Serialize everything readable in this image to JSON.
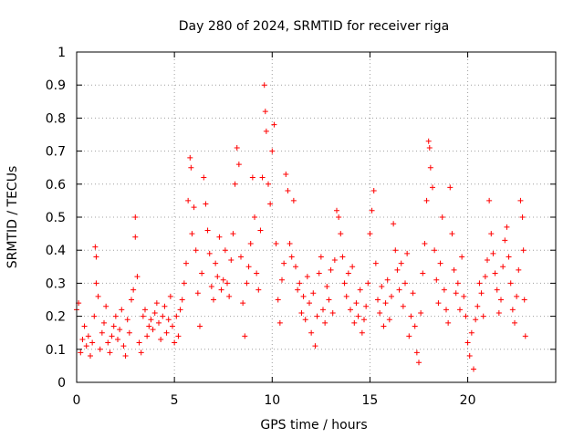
{
  "chart_data": {
    "type": "scatter",
    "title": "Day 280 of 2024, SRMTID for receiver riga",
    "xlabel": "GPS time / hours",
    "ylabel": "SRMTID / TECUs",
    "xlim": [
      0,
      24.5
    ],
    "ylim": [
      0,
      1
    ],
    "x_ticks": [
      0,
      5,
      10,
      15,
      20
    ],
    "x_tick_labels": [
      "0",
      "5",
      "10",
      "15",
      "20"
    ],
    "y_ticks": [
      0,
      0.1,
      0.2,
      0.3,
      0.4,
      0.5,
      0.6,
      0.7,
      0.8,
      0.9,
      1
    ],
    "y_tick_labels": [
      "0",
      "0.1",
      "0.2",
      "0.3",
      "0.4",
      "0.5",
      "0.6",
      "0.7",
      "0.8",
      "0.9",
      "1"
    ],
    "grid": true,
    "marker": "+",
    "color": "#ff0000",
    "series": [
      {
        "name": "SRMTID",
        "points": [
          [
            0.0,
            0.22
          ],
          [
            0.1,
            0.24
          ],
          [
            0.2,
            0.09
          ],
          [
            0.3,
            0.13
          ],
          [
            0.4,
            0.17
          ],
          [
            0.5,
            0.11
          ],
          [
            0.6,
            0.14
          ],
          [
            0.7,
            0.08
          ],
          [
            0.8,
            0.12
          ],
          [
            0.9,
            0.2
          ],
          [
            0.95,
            0.41
          ],
          [
            1.0,
            0.38
          ],
          [
            1.0,
            0.3
          ],
          [
            1.1,
            0.26
          ],
          [
            1.2,
            0.1
          ],
          [
            1.3,
            0.15
          ],
          [
            1.4,
            0.18
          ],
          [
            1.5,
            0.23
          ],
          [
            1.6,
            0.12
          ],
          [
            1.7,
            0.09
          ],
          [
            1.8,
            0.14
          ],
          [
            1.9,
            0.17
          ],
          [
            2.0,
            0.2
          ],
          [
            2.1,
            0.13
          ],
          [
            2.2,
            0.16
          ],
          [
            2.3,
            0.22
          ],
          [
            2.4,
            0.11
          ],
          [
            2.5,
            0.08
          ],
          [
            2.6,
            0.19
          ],
          [
            2.7,
            0.15
          ],
          [
            2.8,
            0.25
          ],
          [
            2.9,
            0.28
          ],
          [
            3.0,
            0.5
          ],
          [
            3.0,
            0.44
          ],
          [
            3.1,
            0.32
          ],
          [
            3.2,
            0.12
          ],
          [
            3.3,
            0.09
          ],
          [
            3.4,
            0.2
          ],
          [
            3.5,
            0.22
          ],
          [
            3.6,
            0.14
          ],
          [
            3.7,
            0.17
          ],
          [
            3.8,
            0.19
          ],
          [
            3.9,
            0.16
          ],
          [
            4.0,
            0.21
          ],
          [
            4.1,
            0.24
          ],
          [
            4.2,
            0.18
          ],
          [
            4.3,
            0.13
          ],
          [
            4.4,
            0.2
          ],
          [
            4.5,
            0.23
          ],
          [
            4.6,
            0.15
          ],
          [
            4.7,
            0.19
          ],
          [
            4.8,
            0.26
          ],
          [
            4.9,
            0.17
          ],
          [
            5.0,
            0.12
          ],
          [
            5.1,
            0.2
          ],
          [
            5.2,
            0.14
          ],
          [
            5.3,
            0.22
          ],
          [
            5.4,
            0.25
          ],
          [
            5.5,
            0.3
          ],
          [
            5.6,
            0.36
          ],
          [
            5.7,
            0.55
          ],
          [
            5.8,
            0.68
          ],
          [
            5.85,
            0.65
          ],
          [
            5.9,
            0.45
          ],
          [
            6.0,
            0.53
          ],
          [
            6.1,
            0.4
          ],
          [
            6.2,
            0.27
          ],
          [
            6.3,
            0.17
          ],
          [
            6.4,
            0.33
          ],
          [
            6.5,
            0.62
          ],
          [
            6.6,
            0.54
          ],
          [
            6.7,
            0.46
          ],
          [
            6.8,
            0.39
          ],
          [
            6.9,
            0.29
          ],
          [
            7.0,
            0.25
          ],
          [
            7.1,
            0.36
          ],
          [
            7.2,
            0.32
          ],
          [
            7.3,
            0.44
          ],
          [
            7.4,
            0.28
          ],
          [
            7.5,
            0.31
          ],
          [
            7.6,
            0.4
          ],
          [
            7.7,
            0.3
          ],
          [
            7.8,
            0.26
          ],
          [
            7.9,
            0.37
          ],
          [
            8.0,
            0.45
          ],
          [
            8.1,
            0.6
          ],
          [
            8.2,
            0.71
          ],
          [
            8.3,
            0.66
          ],
          [
            8.4,
            0.38
          ],
          [
            8.5,
            0.24
          ],
          [
            8.6,
            0.14
          ],
          [
            8.7,
            0.3
          ],
          [
            8.8,
            0.35
          ],
          [
            8.9,
            0.42
          ],
          [
            9.0,
            0.62
          ],
          [
            9.1,
            0.5
          ],
          [
            9.2,
            0.33
          ],
          [
            9.3,
            0.28
          ],
          [
            9.4,
            0.46
          ],
          [
            9.5,
            0.62
          ],
          [
            9.6,
            0.9
          ],
          [
            9.65,
            0.82
          ],
          [
            9.7,
            0.76
          ],
          [
            9.8,
            0.6
          ],
          [
            9.9,
            0.54
          ],
          [
            10.0,
            0.7
          ],
          [
            10.1,
            0.78
          ],
          [
            10.2,
            0.42
          ],
          [
            10.3,
            0.25
          ],
          [
            10.4,
            0.18
          ],
          [
            10.5,
            0.31
          ],
          [
            10.6,
            0.36
          ],
          [
            10.7,
            0.63
          ],
          [
            10.8,
            0.58
          ],
          [
            10.9,
            0.42
          ],
          [
            11.0,
            0.38
          ],
          [
            11.1,
            0.55
          ],
          [
            11.2,
            0.35
          ],
          [
            11.3,
            0.28
          ],
          [
            11.4,
            0.3
          ],
          [
            11.5,
            0.21
          ],
          [
            11.6,
            0.26
          ],
          [
            11.7,
            0.19
          ],
          [
            11.8,
            0.32
          ],
          [
            11.9,
            0.24
          ],
          [
            12.0,
            0.15
          ],
          [
            12.1,
            0.27
          ],
          [
            12.2,
            0.11
          ],
          [
            12.3,
            0.2
          ],
          [
            12.4,
            0.33
          ],
          [
            12.5,
            0.38
          ],
          [
            12.6,
            0.22
          ],
          [
            12.7,
            0.18
          ],
          [
            12.8,
            0.29
          ],
          [
            12.9,
            0.25
          ],
          [
            13.0,
            0.34
          ],
          [
            13.1,
            0.21
          ],
          [
            13.2,
            0.37
          ],
          [
            13.3,
            0.52
          ],
          [
            13.4,
            0.5
          ],
          [
            13.5,
            0.45
          ],
          [
            13.6,
            0.38
          ],
          [
            13.7,
            0.3
          ],
          [
            13.8,
            0.26
          ],
          [
            13.9,
            0.33
          ],
          [
            14.0,
            0.22
          ],
          [
            14.1,
            0.35
          ],
          [
            14.2,
            0.18
          ],
          [
            14.3,
            0.24
          ],
          [
            14.4,
            0.2
          ],
          [
            14.5,
            0.28
          ],
          [
            14.6,
            0.15
          ],
          [
            14.7,
            0.19
          ],
          [
            14.8,
            0.23
          ],
          [
            14.9,
            0.3
          ],
          [
            15.0,
            0.45
          ],
          [
            15.1,
            0.52
          ],
          [
            15.2,
            0.58
          ],
          [
            15.3,
            0.36
          ],
          [
            15.4,
            0.25
          ],
          [
            15.5,
            0.21
          ],
          [
            15.6,
            0.29
          ],
          [
            15.7,
            0.17
          ],
          [
            15.8,
            0.24
          ],
          [
            15.9,
            0.31
          ],
          [
            16.0,
            0.19
          ],
          [
            16.1,
            0.26
          ],
          [
            16.2,
            0.48
          ],
          [
            16.3,
            0.4
          ],
          [
            16.4,
            0.34
          ],
          [
            16.5,
            0.28
          ],
          [
            16.6,
            0.36
          ],
          [
            16.7,
            0.23
          ],
          [
            16.8,
            0.3
          ],
          [
            16.9,
            0.39
          ],
          [
            17.0,
            0.14
          ],
          [
            17.1,
            0.2
          ],
          [
            17.2,
            0.27
          ],
          [
            17.3,
            0.17
          ],
          [
            17.4,
            0.09
          ],
          [
            17.5,
            0.06
          ],
          [
            17.6,
            0.21
          ],
          [
            17.7,
            0.33
          ],
          [
            17.8,
            0.42
          ],
          [
            17.9,
            0.55
          ],
          [
            18.0,
            0.73
          ],
          [
            18.05,
            0.71
          ],
          [
            18.1,
            0.65
          ],
          [
            18.2,
            0.59
          ],
          [
            18.3,
            0.4
          ],
          [
            18.4,
            0.31
          ],
          [
            18.5,
            0.24
          ],
          [
            18.6,
            0.36
          ],
          [
            18.7,
            0.5
          ],
          [
            18.8,
            0.28
          ],
          [
            18.9,
            0.22
          ],
          [
            19.0,
            0.18
          ],
          [
            19.1,
            0.59
          ],
          [
            19.2,
            0.45
          ],
          [
            19.3,
            0.34
          ],
          [
            19.4,
            0.27
          ],
          [
            19.5,
            0.3
          ],
          [
            19.6,
            0.22
          ],
          [
            19.7,
            0.38
          ],
          [
            19.8,
            0.26
          ],
          [
            19.9,
            0.2
          ],
          [
            20.0,
            0.12
          ],
          [
            20.1,
            0.08
          ],
          [
            20.2,
            0.15
          ],
          [
            20.3,
            0.04
          ],
          [
            20.4,
            0.19
          ],
          [
            20.5,
            0.23
          ],
          [
            20.6,
            0.3
          ],
          [
            20.7,
            0.27
          ],
          [
            20.8,
            0.2
          ],
          [
            20.9,
            0.32
          ],
          [
            21.0,
            0.37
          ],
          [
            21.1,
            0.55
          ],
          [
            21.2,
            0.45
          ],
          [
            21.3,
            0.39
          ],
          [
            21.4,
            0.33
          ],
          [
            21.5,
            0.28
          ],
          [
            21.6,
            0.21
          ],
          [
            21.7,
            0.25
          ],
          [
            21.8,
            0.35
          ],
          [
            21.9,
            0.43
          ],
          [
            22.0,
            0.47
          ],
          [
            22.1,
            0.38
          ],
          [
            22.2,
            0.3
          ],
          [
            22.3,
            0.22
          ],
          [
            22.4,
            0.18
          ],
          [
            22.5,
            0.26
          ],
          [
            22.6,
            0.34
          ],
          [
            22.7,
            0.55
          ],
          [
            22.8,
            0.5
          ],
          [
            22.85,
            0.4
          ],
          [
            22.9,
            0.25
          ],
          [
            22.95,
            0.14
          ]
        ]
      }
    ]
  }
}
